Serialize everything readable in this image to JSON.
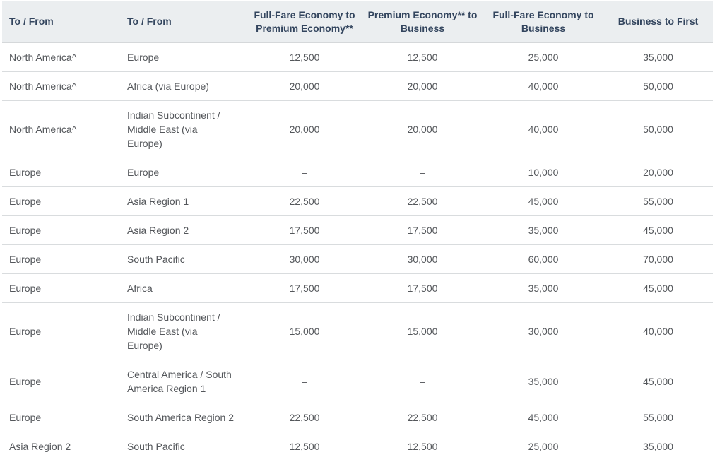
{
  "table": {
    "columns": [
      {
        "name": "to-from-origin",
        "label": "To / From",
        "align": "left"
      },
      {
        "name": "to-from-destination",
        "label": "To / From",
        "align": "left"
      },
      {
        "name": "fullfare-economy-to-premium-economy",
        "label": "Full-Fare Economy to\nPremium Economy**",
        "align": "center"
      },
      {
        "name": "premium-economy-to-business",
        "label": "Premium Economy** to\nBusiness",
        "align": "center"
      },
      {
        "name": "fullfare-economy-to-business",
        "label": "Full-Fare Economy to\nBusiness",
        "align": "center"
      },
      {
        "name": "business-to-first",
        "label": "Business to First",
        "align": "center"
      }
    ],
    "rows": [
      [
        "North America^",
        "Europe",
        "12,500",
        "12,500",
        "25,000",
        "35,000"
      ],
      [
        "North America^",
        "Africa (via Europe)",
        "20,000",
        "20,000",
        "40,000",
        "50,000"
      ],
      [
        "North America^",
        "Indian Subcontinent /\nMiddle East (via\nEurope)",
        "20,000",
        "20,000",
        "40,000",
        "50,000"
      ],
      [
        "Europe",
        "Europe",
        "–",
        "–",
        "10,000",
        "20,000"
      ],
      [
        "Europe",
        "Asia Region 1",
        "22,500",
        "22,500",
        "45,000",
        "55,000"
      ],
      [
        "Europe",
        "Asia Region 2",
        "17,500",
        "17,500",
        "35,000",
        "45,000"
      ],
      [
        "Europe",
        "South Pacific",
        "30,000",
        "30,000",
        "60,000",
        "70,000"
      ],
      [
        "Europe",
        "Africa",
        "17,500",
        "17,500",
        "35,000",
        "45,000"
      ],
      [
        "Europe",
        "Indian Subcontinent /\nMiddle East (via\nEurope)",
        "15,000",
        "15,000",
        "30,000",
        "40,000"
      ],
      [
        "Europe",
        "Central America / South\nAmerica Region 1",
        "–",
        "–",
        "35,000",
        "45,000"
      ],
      [
        "Europe",
        "South America Region 2",
        "22,500",
        "22,500",
        "45,000",
        "55,000"
      ],
      [
        "Asia Region 2",
        "South Pacific",
        "12,500",
        "12,500",
        "25,000",
        "35,000"
      ]
    ]
  },
  "colors": {
    "header_background": "#ebeef0",
    "header_text": "#33455e",
    "body_text": "#54575b",
    "row_divider": "#d9dcde",
    "row_background": "#ffffff"
  }
}
